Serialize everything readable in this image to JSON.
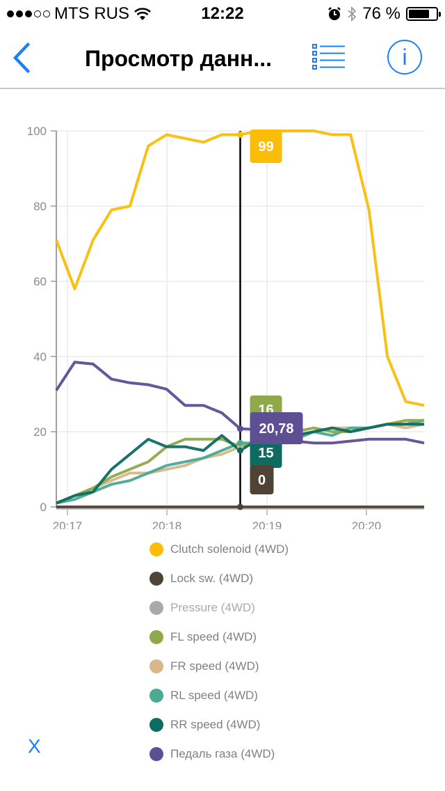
{
  "status_bar": {
    "carrier": "MTS RUS",
    "signal_bars_filled": 3,
    "signal_bars_total": 5,
    "time": "12:22",
    "battery_percent_label": "76 %",
    "battery_level": 0.76
  },
  "navbar": {
    "title": "Просмотр данн...",
    "back_icon": "chevron-left-icon",
    "list_icon": "list-icon",
    "info_icon": "info-icon",
    "info_label": "i",
    "accent_color": "#1a82f7"
  },
  "close_label": "X",
  "chart_data": {
    "type": "line",
    "title": "",
    "xlabel": "",
    "ylabel": "",
    "ylim": [
      0,
      100
    ],
    "yticks": [
      "0",
      "20",
      "40",
      "60",
      "80",
      "100"
    ],
    "xticks": [
      "20:17",
      "20:18",
      "20:19",
      "20:20"
    ],
    "grid": true,
    "legend_position": "bottom",
    "x_index_range": [
      0,
      20
    ],
    "cursor_index": 10,
    "series": [
      {
        "name": "Clutch solenoid (4WD)",
        "color": "#fbbd08",
        "enabled": true,
        "values": [
          71,
          58,
          71,
          79,
          80,
          96,
          99,
          98,
          97,
          99,
          99,
          100,
          100,
          100,
          100,
          99,
          99,
          79,
          40,
          28,
          27
        ],
        "tooltip": "99"
      },
      {
        "name": "Lock sw. (4WD)",
        "color": "#4f4336",
        "enabled": true,
        "values": [
          0,
          0,
          0,
          0,
          0,
          0,
          0,
          0,
          0,
          0,
          0,
          0,
          0,
          0,
          0,
          0,
          0,
          0,
          0,
          0,
          0
        ],
        "tooltip": "0"
      },
      {
        "name": "Pressure (4WD)",
        "color": "#a9a9a9",
        "enabled": false,
        "values": []
      },
      {
        "name": "FL speed (4WD)",
        "color": "#8fa84a",
        "enabled": true,
        "values": [
          1,
          3,
          5,
          8,
          10,
          12,
          16,
          18,
          18,
          18,
          16,
          17,
          19,
          20,
          21,
          20,
          20,
          21,
          22,
          23,
          23
        ],
        "tooltip": "16"
      },
      {
        "name": "FR speed (4WD)",
        "color": "#d6b88a",
        "enabled": true,
        "values": [
          1,
          3,
          5,
          7,
          9,
          9,
          10,
          11,
          13,
          14,
          16,
          17,
          18,
          19,
          20,
          21,
          21,
          21,
          22,
          21,
          22
        ],
        "tooltip": ""
      },
      {
        "name": "RL speed (4WD)",
        "color": "#4aaa94",
        "enabled": true,
        "values": [
          1,
          2,
          4,
          6,
          7,
          9,
          11,
          12,
          13,
          15,
          17,
          17,
          17,
          18,
          20,
          19,
          21,
          21,
          22,
          22,
          23
        ],
        "tooltip": ""
      },
      {
        "name": "RR speed (4WD)",
        "color": "#0e6b62",
        "enabled": true,
        "values": [
          1,
          3,
          4,
          10,
          14,
          18,
          16,
          16,
          15,
          19,
          15,
          18,
          20,
          19,
          20,
          21,
          20,
          21,
          22,
          22,
          22
        ],
        "tooltip": "15"
      },
      {
        "name": "Педаль газа (4WD)",
        "color": "#5e4e93",
        "enabled": true,
        "values": [
          31,
          38.5,
          38,
          34,
          33,
          32.5,
          31.3,
          27,
          27,
          25,
          20.8,
          20.5,
          18,
          17.5,
          17,
          17,
          17.5,
          18,
          18,
          18,
          17
        ],
        "tooltip": "20,78"
      }
    ]
  }
}
